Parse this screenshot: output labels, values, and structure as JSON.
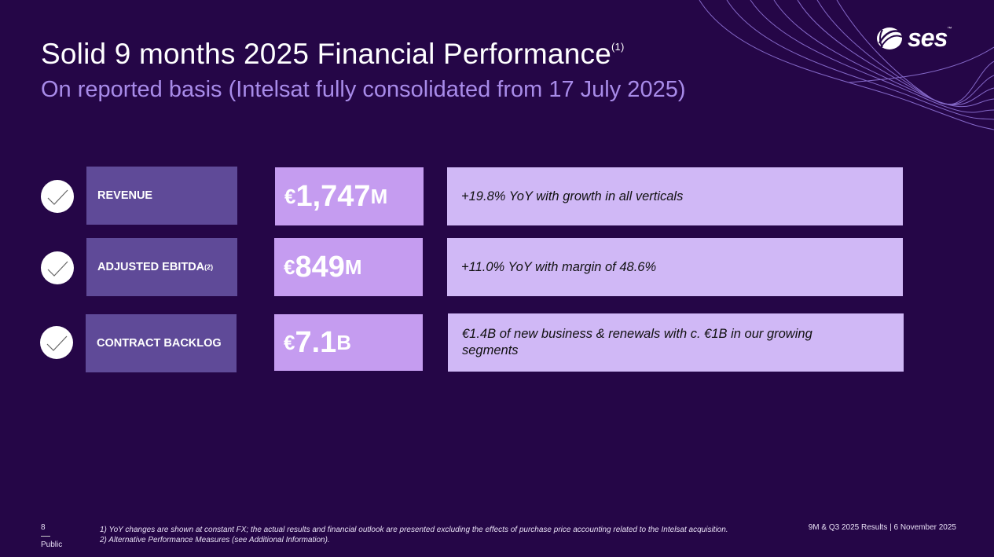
{
  "header": {
    "title": "Solid 9 months 2025 Financial Performance",
    "title_sup": "(1)",
    "subtitle": "On reported basis (Intelsat fully consolidated from 17 July 2025)"
  },
  "logo": {
    "text": "ses",
    "tm": "™"
  },
  "metrics": [
    {
      "label": "REVENUE",
      "label_sup": "",
      "currency": "€",
      "amount": "1,747",
      "unit": "M",
      "description": "+19.8% YoY with growth in all verticals"
    },
    {
      "label": "ADJUSTED EBITDA",
      "label_sup": "(2)",
      "currency": "€",
      "amount": "849",
      "unit": "M",
      "description": "+11.0% YoY with margin of 48.6%"
    },
    {
      "label": "CONTRACT BACKLOG",
      "label_sup": "",
      "currency": "€",
      "amount": "7.1",
      "unit": "B",
      "description": "€1.4B of new business & renewals with c. €1B in our growing segments"
    }
  ],
  "footer": {
    "page_number": "8",
    "classification": "Public",
    "notes": [
      "1) YoY changes are shown at constant FX; the actual results and financial outlook are presented excluding the effects of purchase price accounting related to the Intelsat acquisition.",
      "2) Alternative Performance Measures (see Additional Information)."
    ],
    "right_text": "9M & Q3 2025 Results | 6 November 2025"
  },
  "colors": {
    "background": "#250647",
    "label_box": "#5f4a98",
    "value_box": "#c59cf0",
    "desc_box": "#d0b8f6",
    "subtitle": "#a88be9"
  }
}
